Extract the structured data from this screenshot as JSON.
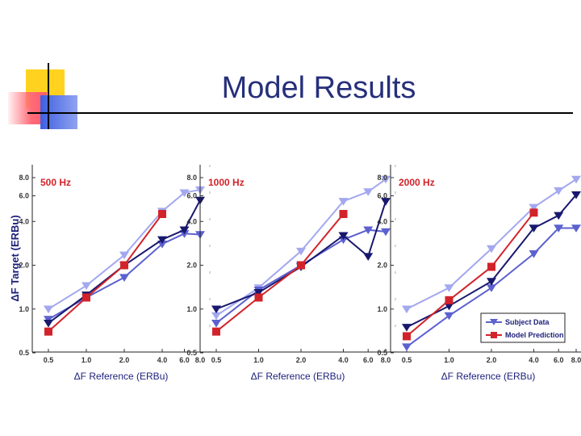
{
  "slide": {
    "title": "Model Results"
  },
  "colors": {
    "title": "#262f7a",
    "light": "#a3a8ef",
    "medium": "#5c61cf",
    "dark": "#18186e",
    "model": "#d2232a",
    "condition": "#d2232a",
    "axis_text": "#1c1f7a"
  },
  "chart_data": [
    {
      "type": "line",
      "condition_label": "500 Hz",
      "xlabel": "ΔF Reference  (ERBu)",
      "ylabel": "ΔF Target  (ERBu)",
      "x_ticks": [
        "0.5",
        "1.0",
        "2.0",
        "4.0",
        "6.0",
        "8.0"
      ],
      "y_ticks": [
        "0.5",
        "1.0",
        "2.0",
        "4.0",
        "6.0",
        "8.0"
      ],
      "xlim": [
        0.5,
        8.0
      ],
      "ylim": [
        0.5,
        8.0
      ],
      "series": [
        {
          "name": "Subject Data (light)",
          "x": [
            0.5,
            1.0,
            2.0,
            4.0,
            6.0,
            8.0
          ],
          "y": [
            1.0,
            1.45,
            2.35,
            4.7,
            6.3,
            6.6
          ]
        },
        {
          "name": "Subject Data (medium)",
          "x": [
            0.5,
            1.0,
            2.0,
            4.0,
            6.0,
            8.0
          ],
          "y": [
            0.85,
            1.2,
            1.65,
            2.8,
            3.3,
            3.25
          ]
        },
        {
          "name": "Subject Data (dark)",
          "x": [
            0.5,
            1.0,
            2.0,
            4.0,
            6.0,
            8.0
          ],
          "y": [
            0.8,
            1.25,
            2.0,
            3.0,
            3.5,
            5.6
          ]
        },
        {
          "name": "Model Prediction",
          "x": [
            0.5,
            1.0,
            2.0,
            4.0
          ],
          "y": [
            0.7,
            1.2,
            2.0,
            4.5
          ]
        }
      ]
    },
    {
      "type": "line",
      "condition_label": "1000 Hz",
      "xlabel": "ΔF Reference  (ERBu)",
      "ylabel": "",
      "x_ticks": [
        "0.5",
        "1.0",
        "2.0",
        "4.0",
        "6.0",
        "8.0"
      ],
      "y_ticks": [
        "0.5",
        "1.0",
        "2.0",
        "4.0",
        "6.0",
        "8.0"
      ],
      "xlim": [
        0.5,
        8.0
      ],
      "ylim": [
        0.5,
        8.0
      ],
      "series": [
        {
          "name": "Subject Data (light)",
          "x": [
            0.5,
            1.0,
            2.0,
            4.0,
            6.0,
            8.0
          ],
          "y": [
            0.9,
            1.4,
            2.5,
            5.5,
            6.4,
            7.8
          ]
        },
        {
          "name": "Subject Data (medium)",
          "x": [
            0.5,
            1.0,
            2.0,
            4.0,
            6.0,
            8.0
          ],
          "y": [
            0.8,
            1.35,
            2.0,
            3.0,
            3.5,
            3.4
          ]
        },
        {
          "name": "Subject Data (dark)",
          "x": [
            0.5,
            1.0,
            2.0,
            4.0,
            6.0,
            8.0
          ],
          "y": [
            1.0,
            1.3,
            1.95,
            3.2,
            2.3,
            5.5
          ]
        },
        {
          "name": "Model Prediction",
          "x": [
            0.5,
            1.0,
            2.0,
            4.0
          ],
          "y": [
            0.7,
            1.2,
            2.0,
            4.5
          ]
        }
      ]
    },
    {
      "type": "line",
      "condition_label": "2000 Hz",
      "xlabel": "ΔF Reference  (ERBu)",
      "ylabel": "",
      "x_ticks": [
        "0.5",
        "1.0",
        "2.0",
        "4.0",
        "6.0",
        "8.0"
      ],
      "y_ticks": [
        "0.5",
        "1.0",
        "2.0",
        "4.0",
        "6.0",
        "8.0"
      ],
      "xlim": [
        0.5,
        8.0
      ],
      "ylim": [
        0.5,
        8.0
      ],
      "series": [
        {
          "name": "Subject Data (light)",
          "x": [
            0.5,
            1.0,
            2.0,
            4.0,
            6.0,
            8.0
          ],
          "y": [
            1.0,
            1.4,
            2.6,
            5.0,
            6.5,
            7.8
          ]
        },
        {
          "name": "Subject Data (medium)",
          "x": [
            0.5,
            1.0,
            2.0,
            4.0,
            6.0,
            8.0
          ],
          "y": [
            0.55,
            0.9,
            1.4,
            2.4,
            3.6,
            3.6
          ]
        },
        {
          "name": "Subject Data (dark)",
          "x": [
            0.5,
            1.0,
            2.0,
            4.0,
            6.0,
            8.0
          ],
          "y": [
            0.75,
            1.05,
            1.55,
            3.6,
            4.4,
            6.1
          ]
        },
        {
          "name": "Model Prediction",
          "x": [
            0.5,
            1.0,
            2.0,
            4.0
          ],
          "y": [
            0.65,
            1.15,
            1.95,
            4.6
          ]
        }
      ],
      "legend": {
        "position": "bottom-right",
        "entries": [
          "Subject Data",
          "Model Prediction"
        ]
      }
    }
  ]
}
